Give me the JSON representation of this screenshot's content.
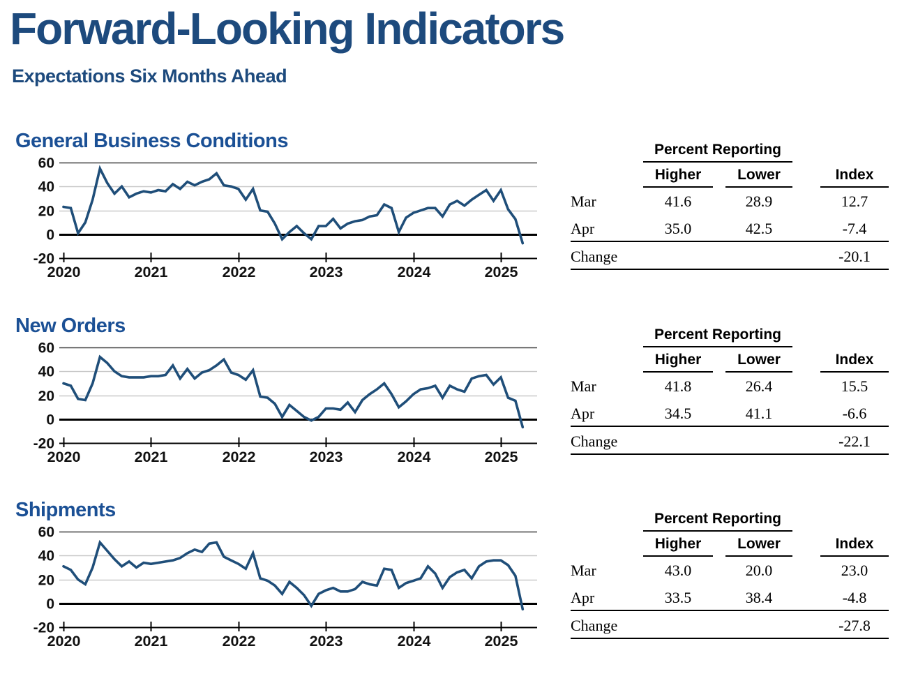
{
  "page": {
    "title": "Forward-Looking Indicators",
    "subtitle": "Expectations Six Months Ahead"
  },
  "colors": {
    "heading_navy": "#1d4a7d",
    "section_heading_blue": "#1b5095",
    "series_line": "#1f4e79",
    "grid_light": "#c9c9c9",
    "grid_dark": "#404040",
    "axis_black": "#000000"
  },
  "sections": [
    {
      "heading": "General Business Conditions",
      "table": {
        "group_header": "Percent Reporting",
        "columns": [
          "Higher",
          "Lower",
          "Index"
        ],
        "rows": [
          {
            "label": "Mar",
            "higher": "41.6",
            "lower": "28.9",
            "index": "12.7"
          },
          {
            "label": "Apr",
            "higher": "35.0",
            "lower": "42.5",
            "index": "-7.4"
          },
          {
            "label": "Change",
            "higher": "",
            "lower": "",
            "index": "-20.1"
          }
        ]
      }
    },
    {
      "heading": "New Orders",
      "table": {
        "group_header": "Percent Reporting",
        "columns": [
          "Higher",
          "Lower",
          "Index"
        ],
        "rows": [
          {
            "label": "Mar",
            "higher": "41.8",
            "lower": "26.4",
            "index": "15.5"
          },
          {
            "label": "Apr",
            "higher": "34.5",
            "lower": "41.1",
            "index": "-6.6"
          },
          {
            "label": "Change",
            "higher": "",
            "lower": "",
            "index": "-22.1"
          }
        ]
      }
    },
    {
      "heading": "Shipments",
      "table": {
        "group_header": "Percent Reporting",
        "columns": [
          "Higher",
          "Lower",
          "Index"
        ],
        "rows": [
          {
            "label": "Mar",
            "higher": "43.0",
            "lower": "20.0",
            "index": "23.0"
          },
          {
            "label": "Apr",
            "higher": "33.5",
            "lower": "38.4",
            "index": "-4.8"
          },
          {
            "label": "Change",
            "higher": "",
            "lower": "",
            "index": "-27.8"
          }
        ]
      }
    }
  ],
  "chart_data": [
    {
      "type": "line",
      "title": "General Business Conditions",
      "frequency": "monthly",
      "x_start": "2020-01",
      "x_end": "2025-04",
      "xtick_labels": [
        "2020",
        "2021",
        "2022",
        "2023",
        "2024",
        "2025"
      ],
      "ytick_values": [
        60,
        40,
        20,
        0,
        -20
      ],
      "ylim": [
        -20,
        60
      ],
      "line_color": "#1f4e79",
      "values": [
        23,
        22,
        1,
        10,
        29,
        55,
        43,
        34,
        40,
        31,
        34,
        36,
        35,
        37,
        36,
        42,
        38,
        44,
        41,
        44,
        46,
        51,
        41,
        40,
        38,
        29,
        38,
        20,
        19,
        9,
        -4,
        2,
        7,
        1,
        -4,
        7,
        7,
        13,
        5,
        9,
        11,
        12,
        15,
        16,
        25,
        22,
        2,
        14,
        18,
        20,
        22,
        22,
        15,
        25,
        28,
        24,
        29,
        33,
        37,
        28,
        37,
        21,
        12.7,
        -7.4
      ]
    },
    {
      "type": "line",
      "title": "New Orders",
      "frequency": "monthly",
      "x_start": "2020-01",
      "x_end": "2025-04",
      "xtick_labels": [
        "2020",
        "2021",
        "2022",
        "2023",
        "2024",
        "2025"
      ],
      "ytick_values": [
        60,
        40,
        20,
        0,
        -20
      ],
      "ylim": [
        -20,
        60
      ],
      "line_color": "#1f4e79",
      "values": [
        30,
        28,
        17,
        16,
        30,
        52,
        47,
        40,
        36,
        35,
        35,
        35,
        36,
        36,
        37,
        45,
        34,
        42,
        34,
        39,
        41,
        45,
        50,
        39,
        37,
        33,
        41,
        19,
        18,
        13,
        2,
        12,
        7,
        2,
        -1,
        2,
        9,
        9,
        8,
        14,
        6,
        16,
        21,
        25,
        30,
        21,
        10,
        15,
        21,
        25,
        26,
        28,
        18,
        28,
        25,
        23,
        34,
        36,
        37,
        29,
        35,
        18,
        15.5,
        -6.6
      ]
    },
    {
      "type": "line",
      "title": "Shipments",
      "frequency": "monthly",
      "x_start": "2020-01",
      "x_end": "2025-04",
      "xtick_labels": [
        "2020",
        "2021",
        "2022",
        "2023",
        "2024",
        "2025"
      ],
      "ytick_values": [
        60,
        40,
        20,
        0,
        -20
      ],
      "ylim": [
        -20,
        60
      ],
      "line_color": "#1f4e79",
      "values": [
        31,
        28,
        20,
        16,
        30,
        51,
        44,
        37,
        31,
        35,
        30,
        34,
        33,
        34,
        35,
        36,
        38,
        42,
        45,
        43,
        50,
        51,
        39,
        36,
        33,
        29,
        42,
        21,
        19,
        15,
        8,
        18,
        13,
        7,
        -2,
        8,
        11,
        13,
        10,
        10,
        12,
        18,
        16,
        15,
        29,
        28,
        13,
        17,
        19,
        21,
        31,
        25,
        13,
        22,
        26,
        28,
        21,
        31,
        35,
        36,
        36,
        32,
        23.0,
        -4.8
      ]
    }
  ]
}
